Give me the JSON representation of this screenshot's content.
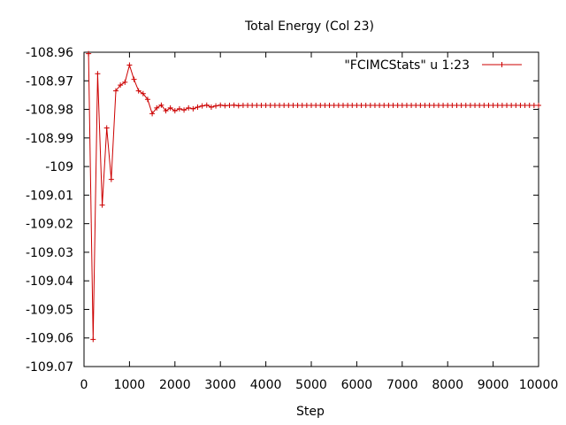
{
  "chart_data": {
    "type": "line",
    "title": "Total Energy (Col 23)",
    "xlabel": "Step",
    "ylabel": "",
    "xlim": [
      0,
      10000
    ],
    "ylim": [
      -109.07,
      -108.96
    ],
    "xticks": [
      "0",
      "1000",
      "2000",
      "3000",
      "4000",
      "5000",
      "6000",
      "7000",
      "8000",
      "9000",
      "10000"
    ],
    "yticks": [
      "-108.96",
      "-108.97",
      "-108.98",
      "-108.99",
      "-109",
      "-109.01",
      "-109.02",
      "-109.03",
      "-109.04",
      "-109.05",
      "-109.06",
      "-109.07"
    ],
    "grid": false,
    "legend_position": "top-right",
    "series": [
      {
        "name": "\"FCIMCStats\" u 1:23",
        "color": "#cc0000",
        "marker": "plus",
        "x": [
          100,
          200,
          300,
          400,
          500,
          600,
          700,
          800,
          900,
          1000,
          1100,
          1200,
          1300,
          1400,
          1500,
          1600,
          1700,
          1800,
          1900,
          2000,
          2100,
          2200,
          2300,
          2400,
          2500,
          2600,
          2700,
          2800,
          2900,
          3000,
          3100,
          3200,
          3300,
          3400,
          3500,
          3600,
          3700,
          3800,
          3900,
          4000,
          4100,
          4200,
          4300,
          4400,
          4500,
          4600,
          4700,
          4800,
          4900,
          5000,
          5100,
          5200,
          5300,
          5400,
          5500,
          5600,
          5700,
          5800,
          5900,
          6000,
          6100,
          6200,
          6300,
          6400,
          6500,
          6600,
          6700,
          6800,
          6900,
          7000,
          7100,
          7200,
          7300,
          7400,
          7500,
          7600,
          7700,
          7800,
          7900,
          8000,
          8100,
          8200,
          8300,
          8400,
          8500,
          8600,
          8700,
          8800,
          8900,
          9000,
          9100,
          9200,
          9300,
          9400,
          9500,
          9600,
          9700,
          9800,
          9900,
          10000
        ],
        "y": [
          -108.9605,
          -109.0605,
          -108.9675,
          -109.0135,
          -108.9865,
          -109.0045,
          -108.9735,
          -108.9715,
          -108.9705,
          -108.9645,
          -108.9695,
          -108.9735,
          -108.9745,
          -108.9765,
          -108.9815,
          -108.9795,
          -108.9785,
          -108.9805,
          -108.9795,
          -108.9805,
          -108.9798,
          -108.9802,
          -108.9795,
          -108.9798,
          -108.9792,
          -108.9788,
          -108.9785,
          -108.9792,
          -108.9788,
          -108.9785,
          -108.9787,
          -108.9786,
          -108.9785,
          -108.9787,
          -108.9786,
          -108.9786,
          -108.9786,
          -108.9786,
          -108.9786,
          -108.9786,
          -108.9786,
          -108.9786,
          -108.9786,
          -108.9786,
          -108.9786,
          -108.9786,
          -108.9786,
          -108.9786,
          -108.9786,
          -108.9786,
          -108.9786,
          -108.9786,
          -108.9786,
          -108.9786,
          -108.9786,
          -108.9786,
          -108.9786,
          -108.9786,
          -108.9786,
          -108.9786,
          -108.9786,
          -108.9786,
          -108.9786,
          -108.9786,
          -108.9786,
          -108.9786,
          -108.9786,
          -108.9786,
          -108.9786,
          -108.9786,
          -108.9786,
          -108.9786,
          -108.9786,
          -108.9786,
          -108.9786,
          -108.9786,
          -108.9786,
          -108.9786,
          -108.9786,
          -108.9786,
          -108.9786,
          -108.9786,
          -108.9786,
          -108.9786,
          -108.9786,
          -108.9786,
          -108.9786,
          -108.9786,
          -108.9786,
          -108.9786,
          -108.9786,
          -108.9786,
          -108.9786,
          -108.9786,
          -108.9786,
          -108.9786,
          -108.9786,
          -108.9786,
          -108.9786,
          -108.9786
        ]
      }
    ]
  }
}
